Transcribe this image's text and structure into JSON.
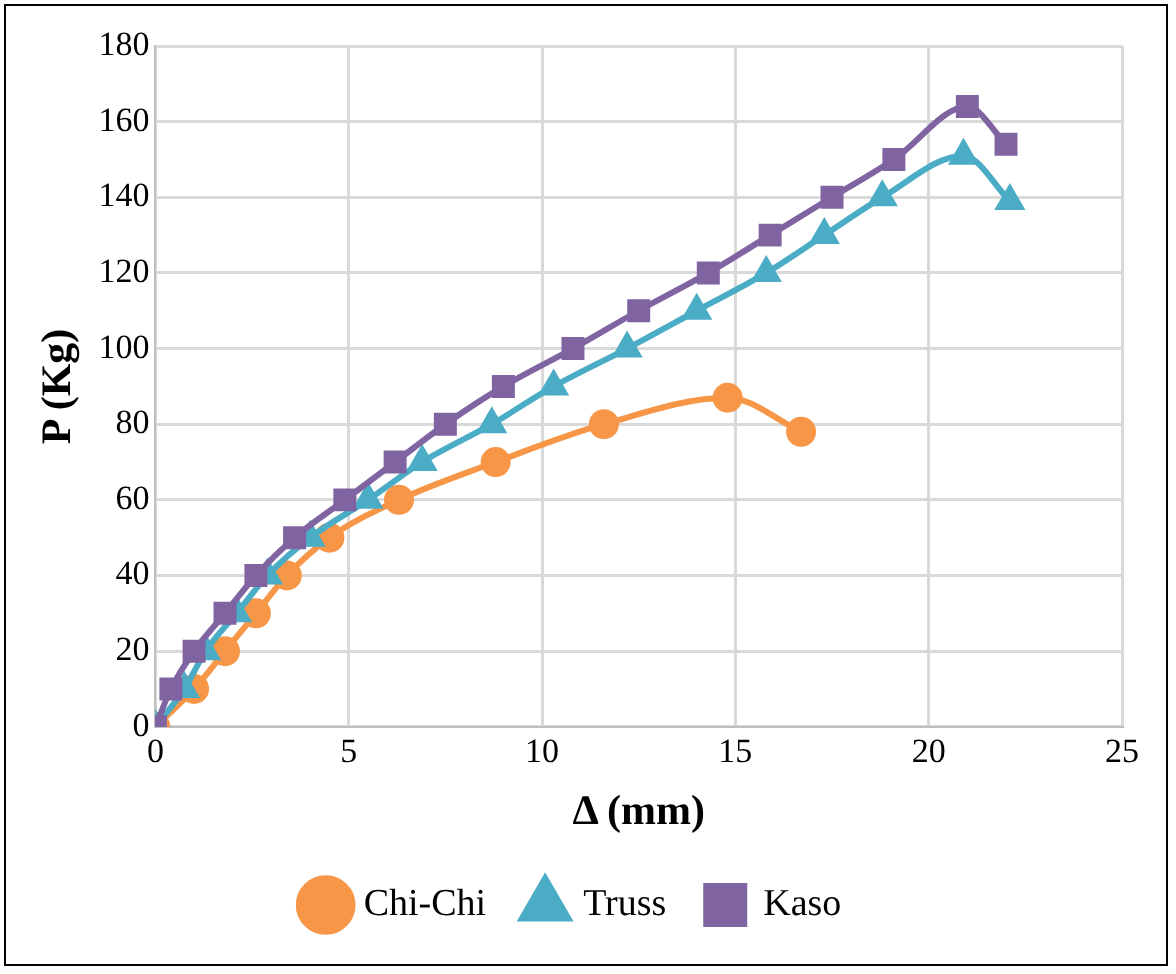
{
  "chart_data": {
    "type": "line",
    "xlabel": "Δ (mm)",
    "ylabel": "P (Kg)",
    "xlim": [
      0,
      25
    ],
    "xticks": [
      0,
      5,
      10,
      15,
      20,
      25
    ],
    "ylim": [
      0,
      180
    ],
    "yticks": [
      0,
      20,
      40,
      60,
      80,
      100,
      120,
      140,
      160,
      180
    ],
    "grid": true,
    "legend": "bottom",
    "line_style": "solid",
    "series": [
      {
        "name": "Chi-Chi",
        "color": "#f79646",
        "marker": "circle",
        "x": [
          0,
          1.0,
          1.8,
          2.6,
          3.4,
          4.5,
          6.3,
          8.8,
          11.6,
          14.8,
          16.7
        ],
        "values": [
          0,
          10,
          20,
          30,
          40,
          50,
          60,
          70,
          80,
          87,
          78
        ]
      },
      {
        "name": "Truss",
        "color": "#4bacc6",
        "marker": "triangle",
        "x": [
          0,
          0.75,
          1.3,
          2.1,
          2.9,
          4.0,
          5.5,
          6.9,
          8.7,
          10.3,
          12.2,
          14.0,
          15.8,
          17.3,
          18.8,
          20.9,
          22.1
        ],
        "values": [
          0,
          10,
          20,
          30,
          40,
          50,
          60,
          70,
          80,
          90,
          100,
          110,
          120,
          130,
          140,
          151,
          139
        ]
      },
      {
        "name": "Kaso",
        "color": "#8064a2",
        "marker": "square",
        "x": [
          0,
          0.4,
          1.0,
          1.8,
          2.6,
          3.6,
          4.9,
          6.2,
          7.5,
          9.0,
          10.8,
          12.5,
          14.3,
          15.9,
          17.5,
          19.1,
          21.0,
          22.0
        ],
        "values": [
          0,
          10,
          20,
          30,
          40,
          50,
          60,
          70,
          80,
          90,
          100,
          110,
          120,
          130,
          140,
          150,
          164,
          154
        ]
      }
    ]
  }
}
